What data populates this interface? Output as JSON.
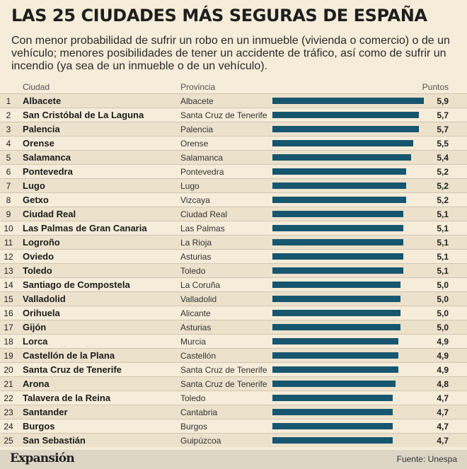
{
  "title": "LAS 25 CIUDADES MÁS SEGURAS DE ESPAÑA",
  "subtitle": "Con menor probabilidad de sufrir un robo en un inmueble (vivienda o comercio) o de un vehículo; menores posibilidades de tener un accidente de tráfico, así como de sufrir un incendio (ya sea de un inmueble o de un vehículo).",
  "headers": {
    "city": "Ciudad",
    "province": "Provincia",
    "points": "Puntos"
  },
  "footer": {
    "logo": "Expansión",
    "source": "Fuente: Unespa"
  },
  "colors": {
    "bar": "#17566f",
    "background": "#f5ecd9",
    "row_alt": "#ece2cc"
  },
  "chart_data": {
    "type": "bar",
    "title": "LAS 25 CIUDADES MÁS SEGURAS DE ESPAÑA",
    "xlabel": "Puntos",
    "ylabel": "Ciudad",
    "xlim": [
      0,
      5.9
    ],
    "rows": [
      {
        "rank": "1",
        "city": "Albacete",
        "province": "Albacete",
        "value": 5.9,
        "label": "5,9"
      },
      {
        "rank": "2",
        "city": "San Cristóbal de La Laguna",
        "province": "Santa Cruz de Tenerife",
        "value": 5.7,
        "label": "5,7"
      },
      {
        "rank": "3",
        "city": "Palencia",
        "province": "Palencia",
        "value": 5.7,
        "label": "5,7"
      },
      {
        "rank": "4",
        "city": "Orense",
        "province": "Orense",
        "value": 5.5,
        "label": "5,5"
      },
      {
        "rank": "5",
        "city": "Salamanca",
        "province": "Salamanca",
        "value": 5.4,
        "label": "5,4"
      },
      {
        "rank": "6",
        "city": "Pontevedra",
        "province": "Pontevedra",
        "value": 5.2,
        "label": "5,2"
      },
      {
        "rank": "7",
        "city": "Lugo",
        "province": "Lugo",
        "value": 5.2,
        "label": "5,2"
      },
      {
        "rank": "8",
        "city": "Getxo",
        "province": "Vizcaya",
        "value": 5.2,
        "label": "5,2"
      },
      {
        "rank": "9",
        "city": "Ciudad Real",
        "province": "Ciudad Real",
        "value": 5.1,
        "label": "5,1"
      },
      {
        "rank": "10",
        "city": "Las Palmas de Gran Canaria",
        "province": "Las Palmas",
        "value": 5.1,
        "label": "5,1"
      },
      {
        "rank": "11",
        "city": "Logroño",
        "province": "La Rioja",
        "value": 5.1,
        "label": "5,1"
      },
      {
        "rank": "12",
        "city": "Oviedo",
        "province": "Asturias",
        "value": 5.1,
        "label": "5,1"
      },
      {
        "rank": "13",
        "city": "Toledo",
        "province": "Toledo",
        "value": 5.1,
        "label": "5,1"
      },
      {
        "rank": "14",
        "city": "Santiago de Compostela",
        "province": "La Coruña",
        "value": 5.0,
        "label": "5,0"
      },
      {
        "rank": "15",
        "city": "Valladolid",
        "province": "Valladolid",
        "value": 5.0,
        "label": "5,0"
      },
      {
        "rank": "16",
        "city": "Orihuela",
        "province": "Alicante",
        "value": 5.0,
        "label": "5,0"
      },
      {
        "rank": "17",
        "city": "Gijón",
        "province": "Asturias",
        "value": 5.0,
        "label": "5,0"
      },
      {
        "rank": "18",
        "city": "Lorca",
        "province": "Murcia",
        "value": 4.9,
        "label": "4,9"
      },
      {
        "rank": "19",
        "city": "Castellón de la Plana",
        "province": "Castellón",
        "value": 4.9,
        "label": "4,9"
      },
      {
        "rank": "20",
        "city": "Santa Cruz de Tenerife",
        "province": "Santa Cruz de Tenerife",
        "value": 4.9,
        "label": "4,9"
      },
      {
        "rank": "21",
        "city": "Arona",
        "province": "Santa Cruz de Tenerife",
        "value": 4.8,
        "label": "4,8"
      },
      {
        "rank": "22",
        "city": "Talavera de la Reina",
        "province": "Toledo",
        "value": 4.7,
        "label": "4,7"
      },
      {
        "rank": "23",
        "city": "Santander",
        "province": "Cantabria",
        "value": 4.7,
        "label": "4,7"
      },
      {
        "rank": "24",
        "city": "Burgos",
        "province": "Burgos",
        "value": 4.7,
        "label": "4,7"
      },
      {
        "rank": "25",
        "city": "San Sebastián",
        "province": "Guipúzcoa",
        "value": 4.7,
        "label": "4,7"
      }
    ]
  }
}
